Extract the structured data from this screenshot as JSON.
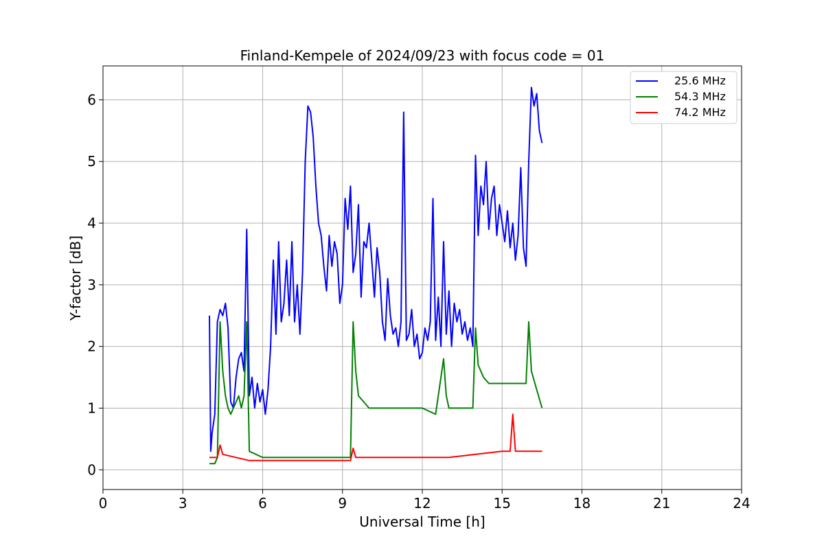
{
  "chart_data": {
    "type": "line",
    "title": "Finland-Kempele of 2024/09/23 with focus code = 01",
    "xlabel": "Universal Time [h]",
    "ylabel": "Y-factor [dB]",
    "xlim": [
      0,
      24
    ],
    "ylim": [
      -0.32,
      6.55
    ],
    "xticks": [
      0,
      3,
      6,
      9,
      12,
      15,
      18,
      21,
      24
    ],
    "yticks": [
      0,
      1,
      2,
      3,
      4,
      5,
      6
    ],
    "grid": true,
    "legend_position": "top-right",
    "series": [
      {
        "name": "25.6 MHz",
        "color": "#0000ff",
        "points": [
          [
            4.0,
            2.5
          ],
          [
            4.05,
            0.3
          ],
          [
            4.1,
            0.6
          ],
          [
            4.2,
            0.9
          ],
          [
            4.3,
            2.4
          ],
          [
            4.4,
            2.6
          ],
          [
            4.5,
            2.5
          ],
          [
            4.6,
            2.7
          ],
          [
            4.7,
            2.3
          ],
          [
            4.8,
            1.1
          ],
          [
            4.9,
            1.0
          ],
          [
            5.0,
            1.5
          ],
          [
            5.1,
            1.8
          ],
          [
            5.2,
            1.9
          ],
          [
            5.3,
            1.6
          ],
          [
            5.4,
            3.9
          ],
          [
            5.5,
            1.2
          ],
          [
            5.6,
            1.5
          ],
          [
            5.7,
            1.0
          ],
          [
            5.8,
            1.4
          ],
          [
            5.9,
            1.1
          ],
          [
            6.0,
            1.3
          ],
          [
            6.1,
            0.9
          ],
          [
            6.2,
            1.3
          ],
          [
            6.3,
            2.0
          ],
          [
            6.4,
            3.4
          ],
          [
            6.5,
            2.2
          ],
          [
            6.6,
            3.7
          ],
          [
            6.7,
            2.4
          ],
          [
            6.8,
            2.7
          ],
          [
            6.9,
            3.4
          ],
          [
            7.0,
            2.5
          ],
          [
            7.1,
            3.7
          ],
          [
            7.2,
            2.4
          ],
          [
            7.3,
            3.0
          ],
          [
            7.4,
            2.2
          ],
          [
            7.5,
            3.2
          ],
          [
            7.6,
            5.0
          ],
          [
            7.7,
            5.9
          ],
          [
            7.8,
            5.8
          ],
          [
            7.9,
            5.4
          ],
          [
            8.0,
            4.6
          ],
          [
            8.1,
            4.0
          ],
          [
            8.2,
            3.8
          ],
          [
            8.3,
            3.3
          ],
          [
            8.4,
            2.9
          ],
          [
            8.5,
            3.8
          ],
          [
            8.6,
            3.3
          ],
          [
            8.7,
            3.7
          ],
          [
            8.8,
            3.5
          ],
          [
            8.9,
            2.7
          ],
          [
            9.0,
            3.0
          ],
          [
            9.1,
            4.4
          ],
          [
            9.2,
            3.9
          ],
          [
            9.3,
            4.6
          ],
          [
            9.4,
            3.2
          ],
          [
            9.5,
            3.5
          ],
          [
            9.6,
            4.3
          ],
          [
            9.7,
            2.8
          ],
          [
            9.8,
            3.7
          ],
          [
            9.9,
            3.6
          ],
          [
            10.0,
            4.0
          ],
          [
            10.1,
            3.4
          ],
          [
            10.2,
            2.8
          ],
          [
            10.3,
            3.6
          ],
          [
            10.4,
            3.2
          ],
          [
            10.5,
            2.4
          ],
          [
            10.6,
            2.1
          ],
          [
            10.7,
            3.1
          ],
          [
            10.8,
            2.5
          ],
          [
            10.9,
            2.2
          ],
          [
            11.0,
            2.3
          ],
          [
            11.1,
            2.0
          ],
          [
            11.2,
            2.4
          ],
          [
            11.3,
            5.8
          ],
          [
            11.4,
            2.1
          ],
          [
            11.5,
            2.2
          ],
          [
            11.6,
            2.6
          ],
          [
            11.7,
            2.0
          ],
          [
            11.8,
            2.2
          ],
          [
            11.9,
            1.8
          ],
          [
            12.0,
            1.9
          ],
          [
            12.1,
            2.3
          ],
          [
            12.2,
            2.1
          ],
          [
            12.3,
            2.4
          ],
          [
            12.4,
            4.4
          ],
          [
            12.5,
            2.1
          ],
          [
            12.6,
            2.8
          ],
          [
            12.7,
            2.0
          ],
          [
            12.8,
            3.7
          ],
          [
            12.9,
            2.2
          ],
          [
            13.0,
            2.9
          ],
          [
            13.1,
            2.0
          ],
          [
            13.2,
            2.7
          ],
          [
            13.3,
            2.4
          ],
          [
            13.4,
            2.6
          ],
          [
            13.5,
            2.2
          ],
          [
            13.6,
            2.4
          ],
          [
            13.7,
            2.1
          ],
          [
            13.8,
            2.3
          ],
          [
            13.9,
            2.0
          ],
          [
            14.0,
            5.1
          ],
          [
            14.1,
            3.8
          ],
          [
            14.2,
            4.6
          ],
          [
            14.3,
            4.3
          ],
          [
            14.4,
            5.0
          ],
          [
            14.5,
            3.9
          ],
          [
            14.6,
            4.4
          ],
          [
            14.7,
            4.6
          ],
          [
            14.8,
            3.8
          ],
          [
            14.9,
            4.3
          ],
          [
            15.0,
            4.0
          ],
          [
            15.1,
            3.7
          ],
          [
            15.2,
            4.2
          ],
          [
            15.3,
            3.6
          ],
          [
            15.4,
            4.0
          ],
          [
            15.5,
            3.4
          ],
          [
            15.6,
            3.8
          ],
          [
            15.7,
            4.9
          ],
          [
            15.8,
            3.6
          ],
          [
            15.9,
            3.3
          ],
          [
            16.0,
            5.0
          ],
          [
            16.1,
            6.2
          ],
          [
            16.2,
            5.9
          ],
          [
            16.3,
            6.1
          ],
          [
            16.4,
            5.5
          ],
          [
            16.5,
            5.3
          ]
        ]
      },
      {
        "name": "54.3 MHz",
        "color": "#008000",
        "points": [
          [
            4.0,
            0.1
          ],
          [
            4.2,
            0.1
          ],
          [
            4.3,
            0.2
          ],
          [
            4.4,
            2.4
          ],
          [
            4.5,
            1.6
          ],
          [
            4.6,
            1.2
          ],
          [
            4.7,
            1.0
          ],
          [
            4.8,
            0.9
          ],
          [
            4.9,
            1.0
          ],
          [
            5.0,
            1.1
          ],
          [
            5.1,
            1.2
          ],
          [
            5.2,
            1.0
          ],
          [
            5.3,
            1.2
          ],
          [
            5.4,
            2.4
          ],
          [
            5.5,
            0.3
          ],
          [
            6.0,
            0.2
          ],
          [
            7.0,
            0.2
          ],
          [
            8.0,
            0.2
          ],
          [
            9.0,
            0.2
          ],
          [
            9.3,
            0.2
          ],
          [
            9.4,
            2.4
          ],
          [
            9.5,
            1.6
          ],
          [
            9.6,
            1.2
          ],
          [
            10.0,
            1.0
          ],
          [
            10.5,
            1.0
          ],
          [
            11.0,
            1.0
          ],
          [
            11.5,
            1.0
          ],
          [
            12.0,
            1.0
          ],
          [
            12.5,
            0.9
          ],
          [
            12.8,
            1.8
          ],
          [
            12.9,
            1.2
          ],
          [
            13.0,
            1.0
          ],
          [
            13.5,
            1.0
          ],
          [
            13.9,
            1.0
          ],
          [
            14.0,
            2.3
          ],
          [
            14.1,
            1.7
          ],
          [
            14.3,
            1.5
          ],
          [
            14.5,
            1.4
          ],
          [
            15.0,
            1.4
          ],
          [
            15.5,
            1.4
          ],
          [
            15.9,
            1.4
          ],
          [
            16.0,
            2.4
          ],
          [
            16.1,
            1.6
          ],
          [
            16.3,
            1.3
          ],
          [
            16.5,
            1.0
          ]
        ]
      },
      {
        "name": "74.2 MHz",
        "color": "#ff0000",
        "points": [
          [
            4.0,
            0.2
          ],
          [
            4.3,
            0.2
          ],
          [
            4.4,
            0.4
          ],
          [
            4.5,
            0.25
          ],
          [
            5.0,
            0.2
          ],
          [
            5.5,
            0.15
          ],
          [
            6.0,
            0.15
          ],
          [
            7.0,
            0.15
          ],
          [
            8.0,
            0.15
          ],
          [
            9.0,
            0.15
          ],
          [
            9.3,
            0.15
          ],
          [
            9.4,
            0.35
          ],
          [
            9.5,
            0.2
          ],
          [
            10.0,
            0.2
          ],
          [
            11.0,
            0.2
          ],
          [
            12.0,
            0.2
          ],
          [
            13.0,
            0.2
          ],
          [
            14.0,
            0.25
          ],
          [
            15.0,
            0.3
          ],
          [
            15.3,
            0.3
          ],
          [
            15.4,
            0.9
          ],
          [
            15.5,
            0.3
          ],
          [
            16.0,
            0.3
          ],
          [
            16.5,
            0.3
          ]
        ]
      }
    ]
  }
}
